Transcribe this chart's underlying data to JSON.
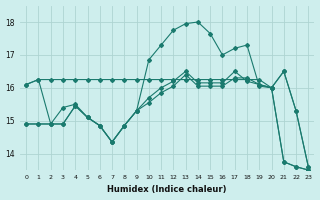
{
  "xlabel": "Humidex (Indice chaleur)",
  "bg_color": "#ceeeed",
  "line_color": "#1a7a6e",
  "grid_color": "#aed4d2",
  "xlim": [
    -0.5,
    23.5
  ],
  "ylim": [
    13.5,
    18.5
  ],
  "yticks": [
    14,
    15,
    16,
    17,
    18
  ],
  "xticks": [
    0,
    1,
    2,
    3,
    4,
    5,
    6,
    7,
    8,
    9,
    10,
    11,
    12,
    13,
    14,
    15,
    16,
    17,
    18,
    19,
    20,
    21,
    22,
    23
  ],
  "line1_x": [
    0,
    1,
    2,
    3,
    4,
    5,
    6,
    7,
    8,
    9,
    10,
    11,
    12,
    13,
    14,
    15,
    16,
    17,
    18,
    19,
    20,
    21,
    22,
    23
  ],
  "line1_y": [
    16.1,
    16.25,
    16.25,
    16.25,
    16.25,
    16.25,
    16.25,
    16.25,
    16.25,
    16.25,
    16.25,
    16.25,
    16.25,
    16.25,
    16.25,
    16.25,
    16.25,
    16.25,
    16.25,
    16.25,
    16.0,
    16.5,
    15.3,
    13.6
  ],
  "line2_x": [
    0,
    1,
    2,
    3,
    4,
    5,
    6,
    7,
    8,
    9,
    10,
    11,
    12,
    13,
    14,
    15,
    16,
    17,
    18,
    19,
    20,
    21,
    22,
    23
  ],
  "line2_y": [
    14.9,
    14.9,
    14.9,
    15.4,
    15.5,
    15.1,
    14.85,
    14.35,
    14.85,
    15.3,
    15.7,
    16.0,
    16.2,
    16.5,
    16.15,
    16.15,
    16.15,
    16.5,
    16.2,
    16.1,
    16.0,
    13.75,
    13.6,
    13.5
  ],
  "line3_x": [
    0,
    1,
    2,
    3,
    4,
    5,
    6,
    7,
    8,
    9,
    10,
    11,
    12,
    13,
    14,
    15,
    16,
    17,
    18,
    19,
    20,
    21,
    22,
    23
  ],
  "line3_y": [
    16.1,
    16.25,
    14.9,
    14.9,
    15.45,
    15.1,
    14.85,
    14.35,
    14.85,
    15.3,
    16.85,
    17.3,
    17.75,
    17.95,
    18.0,
    17.65,
    17.0,
    17.2,
    17.3,
    16.05,
    16.0,
    16.5,
    15.3,
    13.6
  ],
  "line4_x": [
    0,
    1,
    2,
    3,
    4,
    5,
    6,
    7,
    8,
    9,
    10,
    11,
    12,
    13,
    14,
    15,
    16,
    17,
    18,
    19,
    20,
    21,
    22,
    23
  ],
  "line4_y": [
    14.9,
    14.9,
    14.9,
    14.9,
    15.45,
    15.1,
    14.85,
    14.35,
    14.85,
    15.3,
    15.55,
    15.85,
    16.05,
    16.4,
    16.05,
    16.05,
    16.05,
    16.3,
    16.3,
    16.1,
    16.0,
    13.75,
    13.6,
    13.5
  ]
}
